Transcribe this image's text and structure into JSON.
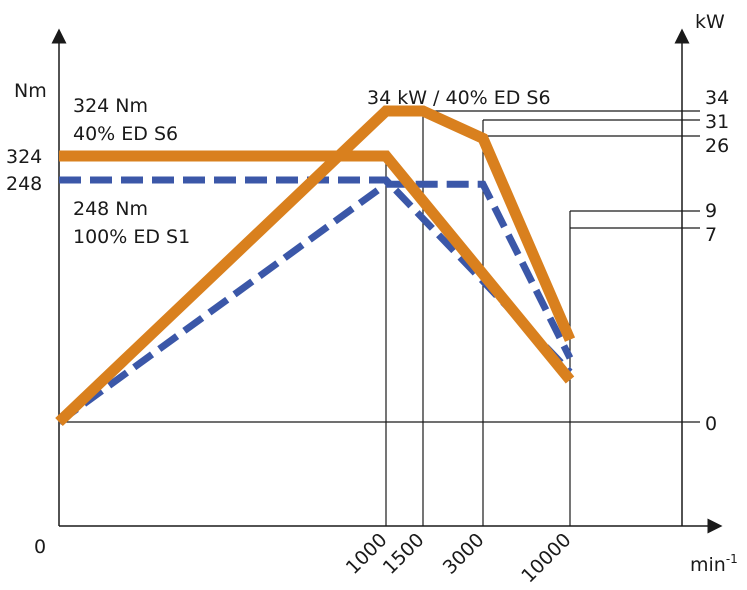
{
  "chart_data": {
    "type": "line",
    "left_axis": {
      "unit": "Nm",
      "ticks": [
        {
          "label": "324",
          "value": 324
        },
        {
          "label": "248",
          "value": 248
        }
      ]
    },
    "right_axis": {
      "unit": "kW",
      "ticks": [
        {
          "label": "34",
          "value": 34
        },
        {
          "label": "31",
          "value": 31
        },
        {
          "label": "26",
          "value": 26
        },
        {
          "label": "9",
          "value": 9
        },
        {
          "label": "7",
          "value": 7
        },
        {
          "label": "0",
          "value": 0
        }
      ]
    },
    "x_axis": {
      "unit": "min",
      "unit_exponent": "-1",
      "origin_label": "0",
      "ticks": [
        "1000",
        "1500",
        "3000",
        "10000"
      ]
    },
    "annotations": {
      "torque_s6_line1": "324 Nm",
      "torque_s6_line2": "40% ED S6",
      "torque_s1_line1": "248 Nm",
      "torque_s1_line2": "100% ED S1",
      "power_s6": "34 kW / 40% ED S6"
    },
    "series": [
      {
        "id": "torque_s6",
        "quantity": "torque",
        "axis": "left",
        "color": "#d9801e",
        "style": "solid",
        "points": [
          {
            "x": 0,
            "y": 324
          },
          {
            "x": 1000,
            "y": 324
          },
          {
            "x": 10000,
            "y": null
          }
        ]
      },
      {
        "id": "torque_s1",
        "quantity": "torque",
        "axis": "left",
        "color": "#3b57a8",
        "style": "dashed",
        "points": [
          {
            "x": 0,
            "y": 248
          },
          {
            "x": 1000,
            "y": 248
          },
          {
            "x": 10000,
            "y": null
          }
        ]
      },
      {
        "id": "power_s6",
        "quantity": "power",
        "axis": "right",
        "color": "#d9801e",
        "style": "solid",
        "points": [
          {
            "x": 0,
            "y": 0
          },
          {
            "x": 1000,
            "y": 34
          },
          {
            "x": 1500,
            "y": 34
          },
          {
            "x": 3000,
            "y": 31
          },
          {
            "x": 10000,
            "y": 9
          }
        ]
      },
      {
        "id": "power_s1",
        "quantity": "power",
        "axis": "right",
        "color": "#3b57a8",
        "style": "dashed",
        "points": [
          {
            "x": 0,
            "y": 0
          },
          {
            "x": 1000,
            "y": 26
          },
          {
            "x": 3000,
            "y": 26
          },
          {
            "x": 10000,
            "y": 7
          }
        ]
      }
    ]
  }
}
